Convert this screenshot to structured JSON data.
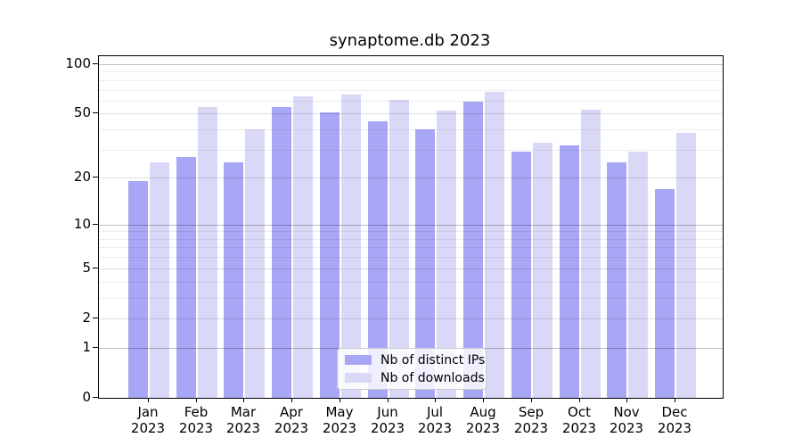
{
  "title": "synaptome.db 2023",
  "colors": {
    "distinct_ips_bar": "#a7a7f5",
    "downloads_bar": "#d9d9f7",
    "grid_power10": "rgba(0,0,0,0.25)",
    "grid_major": "rgba(0,0,0,0.13)",
    "grid_minor": "rgba(0,0,0,0.07)",
    "axis": "#000000",
    "legend_border": "#c9c9c9"
  },
  "legend": {
    "items": [
      {
        "label": "Nb of distinct IPs",
        "series_key": "distinct_ips"
      },
      {
        "label": "Nb of downloads",
        "series_key": "downloads"
      }
    ]
  },
  "chart_data": {
    "type": "bar",
    "title": "synaptome.db 2023",
    "y_scale": "log10(1+x)",
    "categories": [
      "Jan",
      "Feb",
      "Mar",
      "Apr",
      "May",
      "Jun",
      "Jul",
      "Aug",
      "Sep",
      "Oct",
      "Nov",
      "Dec"
    ],
    "year_label": "2023",
    "series": [
      {
        "name": "Nb of distinct IPs",
        "values": [
          19,
          27,
          25,
          55,
          51,
          45,
          40,
          59,
          29,
          32,
          25,
          17
        ]
      },
      {
        "name": "Nb of downloads",
        "values": [
          25,
          55,
          40,
          64,
          65,
          61,
          52,
          68,
          33,
          53,
          29,
          38
        ]
      }
    ],
    "y_ticks": [
      0,
      1,
      2,
      5,
      10,
      20,
      50,
      100
    ],
    "y_minor_gridlines": [
      3,
      4,
      6,
      7,
      8,
      9,
      30,
      40,
      60,
      70,
      80,
      90
    ],
    "ylim": [
      0,
      112
    ],
    "grid": true,
    "legend_position": "inside lower center"
  }
}
